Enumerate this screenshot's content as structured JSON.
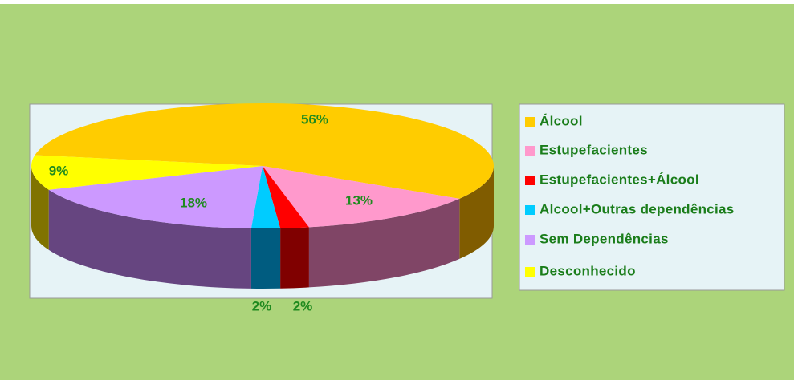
{
  "chart_data": {
    "type": "pie3d",
    "categories": [
      "Álcool",
      "Estupefacientes",
      "Estupefacientes+Álcool",
      "Alcool+Outras dependências",
      "Sem Dependências",
      "Desconhecido"
    ],
    "values": [
      56,
      13,
      2,
      2,
      18,
      9
    ],
    "value_labels": [
      "56%",
      "13%",
      "2%",
      "2%",
      "18%",
      "9%"
    ],
    "colors": [
      "#ffcc00",
      "#ff99cc",
      "#ff0000",
      "#00ccff",
      "#cc99ff",
      "#ffff00"
    ],
    "legend": "right"
  }
}
